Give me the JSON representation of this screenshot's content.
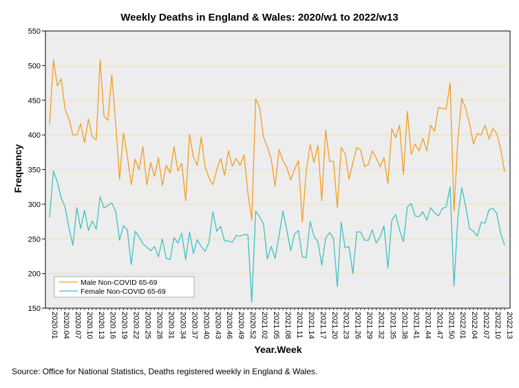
{
  "chart_data": {
    "type": "line",
    "title": "Weekly Deaths in England & Wales: 2020/w1 to 2022/w13",
    "xlabel": "Year.Week",
    "ylabel": "Frequency",
    "ylim": [
      150,
      550
    ],
    "yticks": [
      150,
      200,
      250,
      300,
      350,
      400,
      450,
      500,
      550
    ],
    "grid": "horizontal",
    "legend_position": "bottom-left",
    "xtick_labels": [
      "2020.01",
      "2020.04",
      "2020.07",
      "2020.10",
      "2020.13",
      "2020.16",
      "2020.19",
      "2020.22",
      "2020.25",
      "2020.28",
      "2020.31",
      "2020.34",
      "2020.37",
      "2020.40",
      "2020.43",
      "2020.46",
      "2020.49",
      "2020.52",
      "2021.02",
      "2021.05",
      "2021.08",
      "2021.11",
      "2021.14",
      "2021.17",
      "2021.20",
      "2021.23",
      "2021.26",
      "2021.29",
      "2021.32",
      "2021.35",
      "2021.38",
      "2021.41",
      "2021.44",
      "2021.47",
      "2021.50",
      "2022.01",
      "2022.04",
      "2022.07",
      "2022.10",
      "2022.13"
    ],
    "series": [
      {
        "name": "Male Non-COVID 65-69",
        "color": "#f39c1f",
        "values": [
          415,
          508,
          471,
          481,
          437,
          423,
          400,
          400,
          416,
          389,
          423,
          397,
          393,
          508,
          427,
          421,
          487,
          417,
          336,
          403,
          369,
          328,
          365,
          350,
          383,
          328,
          360,
          340,
          367,
          327,
          356,
          345,
          383,
          348,
          359,
          305,
          401,
          368,
          356,
          397,
          354,
          338,
          328,
          350,
          366,
          342,
          377,
          355,
          366,
          356,
          371,
          316,
          277,
          452,
          440,
          397,
          383,
          365,
          326,
          379,
          363,
          353,
          335,
          350,
          363,
          274,
          347,
          386,
          360,
          385,
          305,
          407,
          362,
          362,
          295,
          382,
          373,
          336,
          360,
          382,
          378,
          354,
          358,
          377,
          367,
          354,
          367,
          330,
          409,
          396,
          414,
          343,
          434,
          372,
          387,
          377,
          395,
          377,
          414,
          405,
          440,
          438,
          438,
          475,
          290,
          393,
          453,
          438,
          416,
          387,
          402,
          400,
          414,
          394,
          409,
          402,
          380,
          347
        ]
      },
      {
        "name": "Female Non-COVID 65-69",
        "color": "#3fbfbf",
        "values": [
          281,
          348,
          332,
          309,
          296,
          265,
          241,
          295,
          265,
          291,
          262,
          276,
          264,
          311,
          295,
          298,
          302,
          290,
          248,
          269,
          263,
          213,
          261,
          253,
          243,
          238,
          233,
          239,
          224,
          250,
          222,
          220,
          252,
          244,
          258,
          220,
          260,
          229,
          249,
          239,
          232,
          245,
          289,
          261,
          268,
          247,
          247,
          245,
          255,
          254,
          256,
          256,
          159,
          290,
          282,
          272,
          221,
          239,
          222,
          254,
          290,
          263,
          233,
          257,
          262,
          224,
          223,
          275,
          254,
          246,
          212,
          251,
          259,
          251,
          181,
          274,
          237,
          239,
          200,
          260,
          260,
          248,
          248,
          263,
          244,
          253,
          269,
          208,
          277,
          285,
          263,
          246,
          296,
          301,
          283,
          282,
          289,
          277,
          295,
          288,
          283,
          294,
          296,
          325,
          182,
          281,
          324,
          297,
          265,
          261,
          254,
          274,
          273,
          292,
          294,
          287,
          258,
          241
        ]
      }
    ]
  },
  "footer": {
    "source": "Source: Office for National Statistics, Deaths registered weekly in England & Wales."
  }
}
